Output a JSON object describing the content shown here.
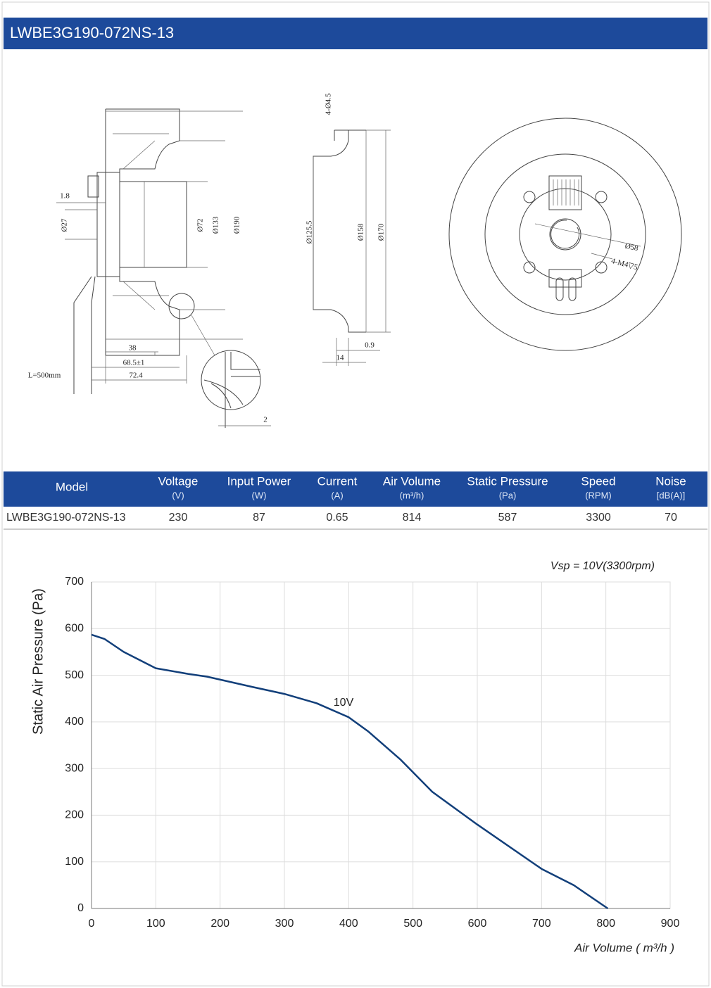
{
  "header": {
    "title": "LWBE3G190-072NS-13"
  },
  "drawing": {
    "labels": [
      "1.8",
      "Ø27",
      "Ø72",
      "Ø133",
      "Ø190",
      "38",
      "68.5±1",
      "72.4",
      "L=500mm",
      "2",
      "4-Ø4.5",
      "Ø125.5",
      "Ø158",
      "Ø170",
      "0.9",
      "14",
      "Ø58",
      "4-M4▽5"
    ]
  },
  "table": {
    "columns": [
      {
        "name": "Model"
      },
      {
        "name": "Voltage",
        "unit": "(V)"
      },
      {
        "name": "Input Power",
        "unit": "(W)"
      },
      {
        "name": "Current",
        "unit": "(A)"
      },
      {
        "name": "Air Volume",
        "unit": "(m³/h)"
      },
      {
        "name": "Static Pressure",
        "unit": "(Pa)"
      },
      {
        "name": "Speed",
        "unit": "(RPM)"
      },
      {
        "name": "Noise",
        "unit": "[dB(A)]"
      }
    ],
    "rows": [
      [
        "LWBE3G190-072NS-13",
        230,
        87,
        0.65,
        814,
        587,
        3300,
        70
      ]
    ]
  },
  "chart_data": {
    "type": "line",
    "annotation": "Vsp = 10V(3300rpm)",
    "x_label": "Air Volume ( m³/h )",
    "y_label": "Static Air Pressure  (Pa)",
    "x": [
      0,
      20,
      50,
      100,
      150,
      180,
      250,
      300,
      350,
      400,
      430,
      480,
      530,
      600,
      700,
      750,
      803
    ],
    "series": [
      {
        "name": "10V",
        "color": "#123f7a",
        "values": [
          587,
          578,
          550,
          515,
          503,
          497,
          475,
          460,
          440,
          410,
          380,
          320,
          250,
          180,
          85,
          50,
          0
        ]
      }
    ],
    "xlim": [
      0,
      900
    ],
    "xticks": [
      0,
      100,
      200,
      300,
      400,
      500,
      600,
      700,
      800,
      900
    ],
    "ylim": [
      0,
      700
    ],
    "yticks": [
      0,
      100,
      200,
      300,
      400,
      500,
      600,
      700
    ],
    "grid": true
  }
}
